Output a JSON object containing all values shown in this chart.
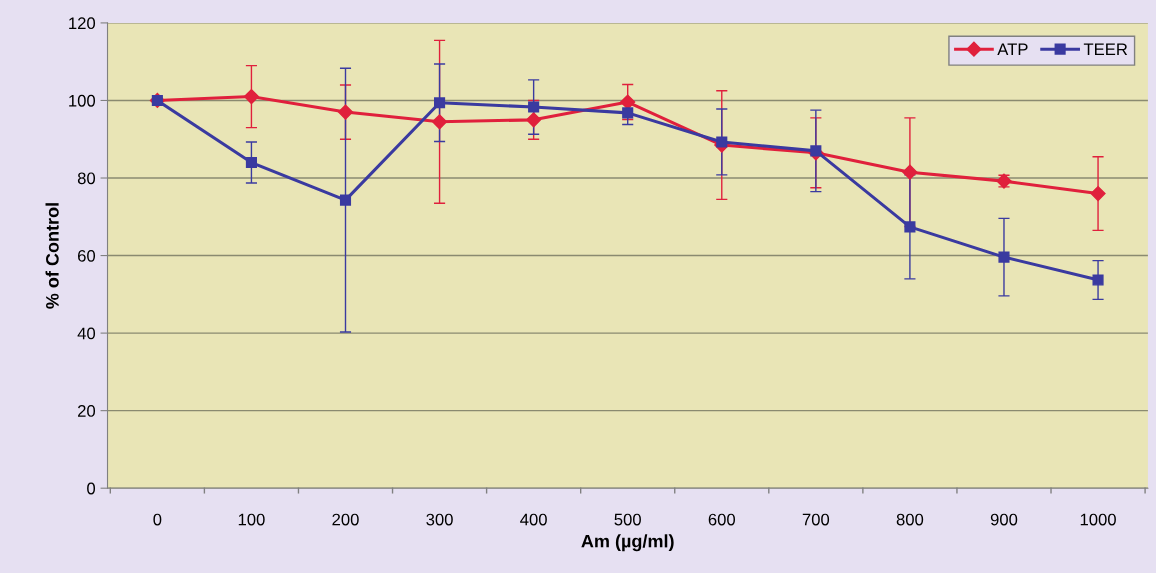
{
  "chart_data": {
    "type": "line",
    "xlabel": "Am (µg/ml)",
    "ylabel": "% of Control",
    "categories": [
      "0",
      "100",
      "200",
      "300",
      "400",
      "500",
      "600",
      "700",
      "800",
      "900",
      "1000"
    ],
    "series": [
      {
        "name": "ATP",
        "color": "#e0203c",
        "marker": "diamond",
        "values": [
          100,
          101,
          97,
          94.5,
          95,
          99.6,
          88.5,
          86.5,
          81.5,
          79.2,
          76
        ],
        "errors": [
          null,
          8,
          7,
          21,
          5,
          4.5,
          14,
          9,
          14,
          1.5,
          9.5
        ]
      },
      {
        "name": "TEER",
        "color": "#3a3aa0",
        "marker": "square",
        "values": [
          100,
          84,
          74.3,
          99.4,
          98.3,
          96.8,
          89.3,
          87,
          67.4,
          59.6,
          53.7
        ],
        "errors": [
          null,
          5.3,
          34,
          10,
          7,
          3,
          8.5,
          10.5,
          13.4,
          10,
          5
        ]
      }
    ],
    "ylim": [
      0,
      120
    ],
    "yticks": [
      0,
      20,
      40,
      60,
      80,
      100,
      120
    ],
    "grid": "y",
    "legend": "top right"
  }
}
